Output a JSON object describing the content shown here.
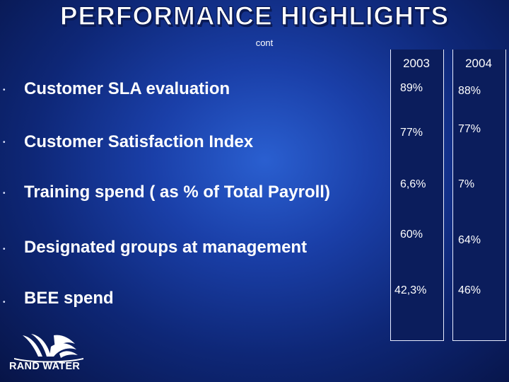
{
  "slide": {
    "title": "PERFORMANCE HIGHLIGHTS",
    "subtitle": "cont"
  },
  "columns": [
    "2003",
    "2004"
  ],
  "metrics": [
    {
      "label": "Customer SLA evaluation",
      "v2003": "89%",
      "v2004": "88%"
    },
    {
      "label": "Customer Satisfaction Index",
      "v2003": "77%",
      "v2004": "77%"
    },
    {
      "label": "Training spend ( as % of Total Payroll)",
      "v2003": "6,6%",
      "v2004": "7%"
    },
    {
      "label": "Designated groups at management",
      "v2003": "60%",
      "v2004": "64%"
    },
    {
      "label": "BEE spend",
      "v2003": "42,3%",
      "v2004": "46%"
    }
  ],
  "logo": {
    "text": "RAND WATER",
    "icon": "rand-water-logo-icon"
  },
  "bullet_glyph": "•"
}
